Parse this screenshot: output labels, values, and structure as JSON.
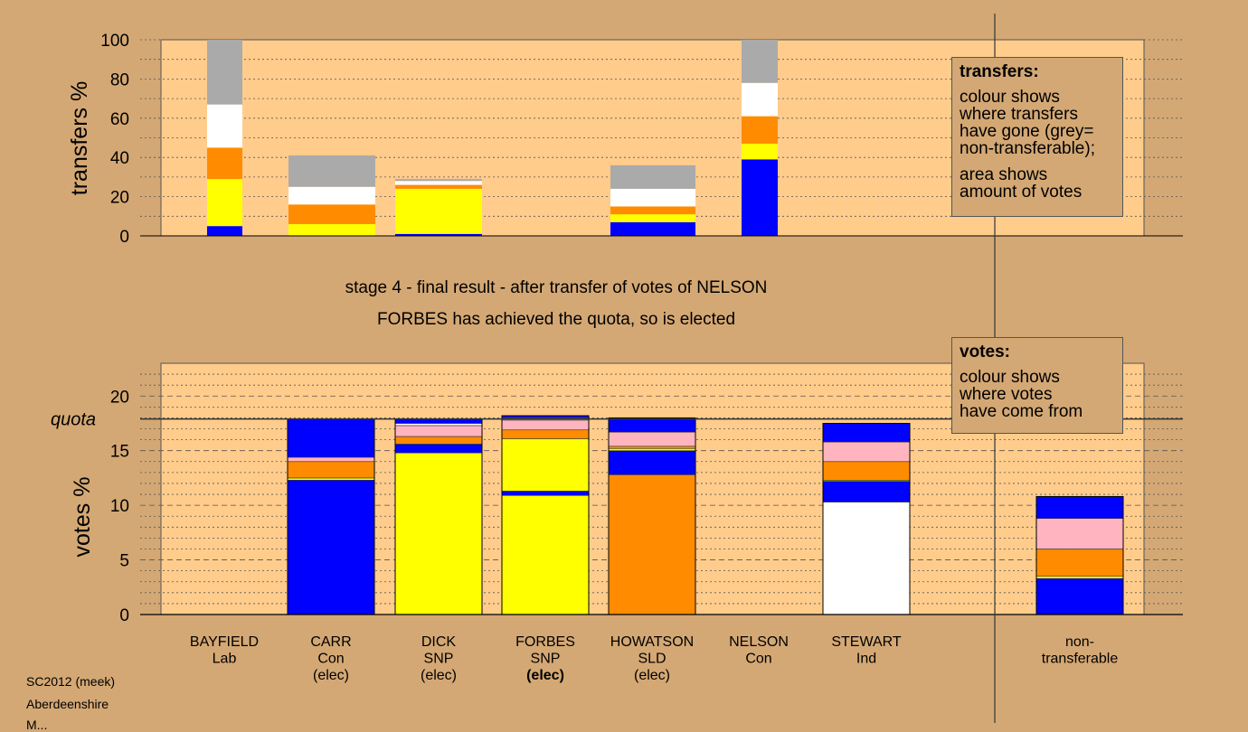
{
  "colors": {
    "background": "#d4a874",
    "plot_background": "#ffcc8c",
    "blue": "#0000ff",
    "yellow": "#ffff00",
    "orange": "#ff8c00",
    "pink": "#ffb4c0",
    "white": "#ffffff",
    "grey": "#aaaaaa"
  },
  "stage_text": {
    "line1": "stage 4 - final result - after transfer of votes of NELSON",
    "line2": "FORBES has achieved the quota, so is elected"
  },
  "legend_transfers": {
    "title": "transfers:",
    "lines": [
      "colour shows",
      "where transfers",
      "have gone (grey=",
      "non-transferable);"
    ],
    "lines2": [
      "area shows",
      "amount of votes"
    ]
  },
  "legend_votes": {
    "title": "votes:",
    "lines": [
      "colour shows",
      "where votes",
      "have come from"
    ]
  },
  "footer": {
    "line1": "SC2012 (meek)",
    "line2": "Aberdeenshire",
    "line3": "M..."
  },
  "chart_data": [
    {
      "type": "bar",
      "stacked": true,
      "ylabel": "transfers %",
      "ylim": [
        0,
        100
      ],
      "yticks": [
        0,
        20,
        40,
        60,
        80,
        100
      ],
      "grid": "dotted",
      "series_colors": [
        "blue",
        "yellow",
        "orange",
        "white",
        "grey"
      ],
      "bars": [
        {
          "candidate": "BAYFIELD",
          "width": "narrow",
          "segments": [
            5,
            24,
            16,
            22,
            33
          ]
        },
        {
          "candidate": "CARR",
          "width": "wide",
          "segments": [
            0,
            6,
            10,
            9,
            16
          ]
        },
        {
          "candidate": "DICK",
          "width": "wide",
          "segments": [
            1,
            23,
            2,
            2,
            1
          ]
        },
        {
          "candidate": "HOWATSON",
          "width": "wide",
          "segments": [
            7,
            4,
            4,
            9,
            12
          ]
        },
        {
          "candidate": "NELSON",
          "width": "narrow",
          "segments": [
            39,
            8,
            14,
            17,
            22
          ]
        }
      ]
    },
    {
      "type": "bar",
      "stacked": true,
      "ylabel": "votes %",
      "ylim": [
        0,
        23
      ],
      "yticks": [
        0,
        5,
        10,
        15,
        20
      ],
      "quota": 17.9,
      "quota_label": "quota",
      "grid": "dashed",
      "categories": [
        {
          "name": "BAYFIELD",
          "party": "Lab",
          "status": ""
        },
        {
          "name": "CARR",
          "party": "Con",
          "status": "(elec)"
        },
        {
          "name": "DICK",
          "party": "SNP",
          "status": "(elec)"
        },
        {
          "name": "FORBES",
          "party": "SNP",
          "status": "(elec)",
          "highlight": true
        },
        {
          "name": "HOWATSON",
          "party": "SLD",
          "status": "(elec)"
        },
        {
          "name": "NELSON",
          "party": "Con",
          "status": ""
        },
        {
          "name": "STEWART",
          "party": "Ind",
          "status": ""
        }
      ],
      "nontransferable_label": [
        "non-",
        "transferable"
      ],
      "bars": [
        {
          "candidate": "BAYFIELD",
          "segments": []
        },
        {
          "candidate": "CARR",
          "segments": [
            [
              "blue",
              12.3
            ],
            [
              "yellow",
              0.2
            ],
            [
              "orange",
              1.5
            ],
            [
              "pink",
              0.4
            ],
            [
              "blue",
              3.5
            ]
          ]
        },
        {
          "candidate": "DICK",
          "segments": [
            [
              "yellow",
              14.8
            ],
            [
              "blue",
              0.8
            ],
            [
              "orange",
              0.7
            ],
            [
              "pink",
              1.0
            ],
            [
              "white",
              0.2
            ],
            [
              "blue",
              0.4
            ]
          ]
        },
        {
          "candidate": "FORBES",
          "segments": [
            [
              "yellow",
              10.9
            ],
            [
              "blue",
              0.4
            ],
            [
              "yellow",
              4.8
            ],
            [
              "orange",
              0.8
            ],
            [
              "pink",
              0.9
            ],
            [
              "white",
              0.2
            ],
            [
              "blue",
              0.2
            ]
          ]
        },
        {
          "candidate": "HOWATSON",
          "segments": [
            [
              "orange",
              12.8
            ],
            [
              "blue",
              2.2
            ],
            [
              "yellow",
              0.2
            ],
            [
              "orange",
              0.2
            ],
            [
              "pink",
              1.3
            ],
            [
              "blue",
              1.3
            ]
          ]
        },
        {
          "candidate": "NELSON",
          "segments": []
        },
        {
          "candidate": "STEWART",
          "segments": [
            [
              "white",
              10.3
            ],
            [
              "blue",
              1.9
            ],
            [
              "yellow",
              0.1
            ],
            [
              "orange",
              1.7
            ],
            [
              "pink",
              1.8
            ],
            [
              "blue",
              1.7
            ]
          ]
        },
        {
          "candidate": "non-transferable",
          "segments": [
            [
              "blue",
              3.3
            ],
            [
              "yellow",
              0.2
            ],
            [
              "orange",
              2.5
            ],
            [
              "pink",
              2.8
            ],
            [
              "blue",
              2.0
            ]
          ]
        }
      ]
    }
  ]
}
